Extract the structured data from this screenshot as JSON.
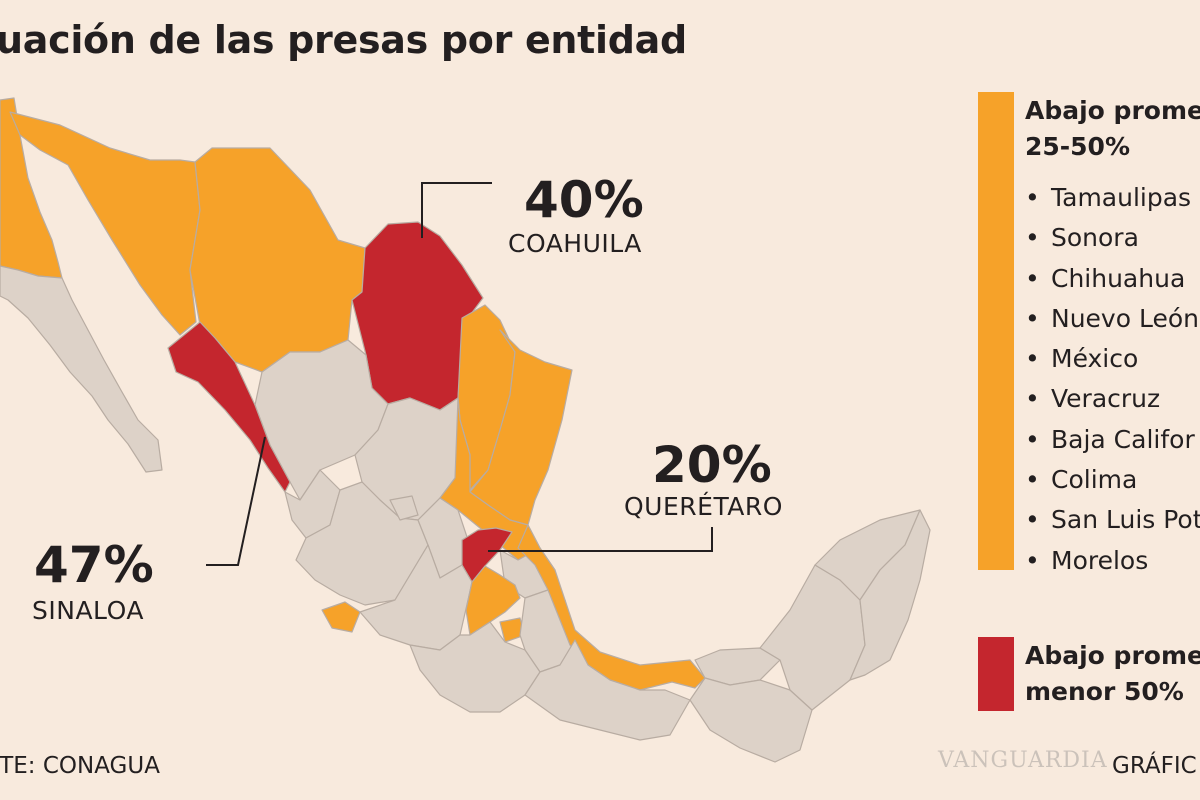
{
  "title": "uación de las presas por entidad",
  "colors": {
    "background": "#f8eadd",
    "orange": "#f6a229",
    "red": "#c4262e",
    "gray": "#ddd2c8",
    "border": "#b8aca2",
    "text": "#231f20"
  },
  "callouts": [
    {
      "percent": "40%",
      "state": "COAHUILA"
    },
    {
      "percent": "20%",
      "state": "QUERÉTARO"
    },
    {
      "percent": "47%",
      "state": "SINALOA"
    }
  ],
  "legend": {
    "orange_group": {
      "heading_line1": "Abajo prome",
      "heading_line2": "25-50%",
      "bullet": "•",
      "states": [
        "Tamaulipas",
        "Sonora",
        "Chihuahua",
        "Nuevo León",
        "México",
        "Veracruz",
        "Baja Califor",
        "Colima",
        "San Luis Poto",
        "Morelos"
      ]
    },
    "red_group": {
      "heading_line1": "Abajo prome",
      "heading_line2": "menor 50%"
    }
  },
  "footer": {
    "source": "NTE: CONAGUA",
    "credit": "GRÁFIC",
    "watermark": "VANGUARDIA"
  }
}
